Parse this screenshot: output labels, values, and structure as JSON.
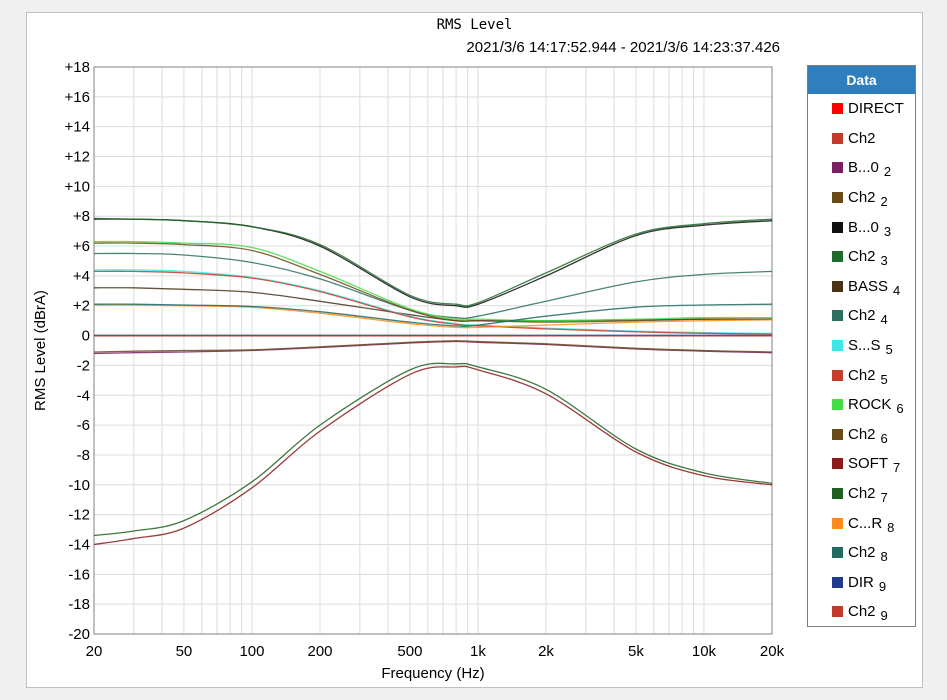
{
  "chart_data": {
    "type": "line",
    "title": "RMS Level",
    "subtitle": "2021/3/6 14:17:52.944 - 2021/3/6 14:23:37.426",
    "xlabel": "Frequency (Hz)",
    "ylabel": "RMS Level (dBrA)",
    "xscale": "log",
    "xlim": [
      20,
      20000
    ],
    "ylim": [
      -20,
      18
    ],
    "grid": true,
    "legend_position": "right",
    "legend_title": "Data",
    "x_ticks": [
      "20",
      "50",
      "100",
      "200",
      "500",
      "1k",
      "2k",
      "5k",
      "10k",
      "20k"
    ],
    "y_ticks": [
      "+18",
      "+16",
      "+14",
      "+12",
      "+10",
      "+8",
      "+6",
      "+4",
      "+2",
      "0",
      "-2",
      "-4",
      "-6",
      "-8",
      "-10",
      "-12",
      "-14",
      "-16",
      "-18",
      "-20"
    ],
    "x": [
      20,
      30,
      50,
      100,
      200,
      500,
      800,
      1000,
      2000,
      5000,
      10000,
      20000
    ],
    "series": [
      {
        "name": "DIRECT",
        "label": "DIRECT",
        "index": "",
        "color": "#ff0000",
        "values": [
          0,
          0,
          0,
          0,
          0,
          0,
          0,
          0,
          0,
          0,
          0,
          0
        ]
      },
      {
        "name": "Ch2",
        "label": "Ch2",
        "index": "",
        "color": "#c0392b",
        "values": [
          -0.02,
          -0.02,
          -0.02,
          -0.02,
          -0.02,
          -0.02,
          -0.02,
          -0.02,
          -0.02,
          -0.02,
          -0.02,
          -0.02
        ]
      },
      {
        "name": "B...0 2",
        "label": "B...0",
        "index": "2",
        "color": "#7b1f5f",
        "values": [
          -1.2,
          -1.15,
          -1.1,
          -1.0,
          -0.8,
          -0.5,
          -0.4,
          -0.45,
          -0.6,
          -0.9,
          -1.05,
          -1.15
        ]
      },
      {
        "name": "Ch2 2",
        "label": "Ch2",
        "index": "2",
        "color": "#6b4a1a",
        "values": [
          -1.1,
          -1.05,
          -1.0,
          -0.95,
          -0.75,
          -0.45,
          -0.35,
          -0.4,
          -0.55,
          -0.85,
          -1.0,
          -1.1
        ]
      },
      {
        "name": "B...0 3",
        "label": "B...0",
        "index": "3",
        "color": "#111111",
        "values": [
          7.8,
          7.8,
          7.7,
          7.3,
          6.0,
          2.6,
          2.0,
          2.1,
          4.0,
          6.7,
          7.4,
          7.7
        ]
      },
      {
        "name": "Ch2 3",
        "label": "Ch2",
        "index": "3",
        "color": "#1f6b2a",
        "values": [
          7.85,
          7.8,
          7.7,
          7.3,
          6.1,
          2.7,
          2.1,
          2.2,
          4.2,
          6.8,
          7.5,
          7.8
        ]
      },
      {
        "name": "BASS 4",
        "label": "BASS",
        "index": "4",
        "color": "#4a3418",
        "values": [
          3.2,
          3.2,
          3.1,
          2.9,
          2.3,
          1.4,
          1.0,
          1.0,
          1.0,
          1.05,
          1.1,
          1.1
        ]
      },
      {
        "name": "Ch2 4",
        "label": "Ch2",
        "index": "4",
        "color": "#2a6f5f",
        "values": [
          5.5,
          5.5,
          5.4,
          4.9,
          3.8,
          1.7,
          1.2,
          1.3,
          2.3,
          3.6,
          4.1,
          4.3
        ]
      },
      {
        "name": "S...S 5",
        "label": "S...S",
        "index": "5",
        "color": "#3ee6e6",
        "values": [
          4.4,
          4.4,
          4.3,
          3.9,
          3.0,
          1.3,
          0.8,
          0.7,
          0.5,
          0.3,
          0.2,
          0.15
        ]
      },
      {
        "name": "Ch2 5",
        "label": "Ch2",
        "index": "5",
        "color": "#c63c2c",
        "values": [
          4.3,
          4.3,
          4.2,
          3.85,
          2.95,
          1.25,
          0.75,
          0.65,
          0.45,
          0.25,
          0.15,
          0.1
        ]
      },
      {
        "name": "ROCK 6",
        "label": "ROCK",
        "index": "6",
        "color": "#44dd44",
        "values": [
          6.3,
          6.3,
          6.2,
          5.9,
          4.3,
          1.8,
          1.1,
          1.1,
          1.0,
          1.1,
          1.2,
          1.2
        ]
      },
      {
        "name": "Ch2 6",
        "label": "Ch2",
        "index": "6",
        "color": "#6b4a1a",
        "values": [
          6.2,
          6.2,
          6.1,
          5.7,
          4.1,
          1.7,
          1.0,
          1.0,
          0.9,
          1.0,
          1.1,
          1.1
        ]
      },
      {
        "name": "SOFT 7",
        "label": "SOFT",
        "index": "7",
        "color": "#8b1a1a",
        "values": [
          -14.0,
          -13.6,
          -12.9,
          -10.2,
          -6.4,
          -2.6,
          -2.1,
          -2.3,
          -3.9,
          -7.8,
          -9.4,
          -10.0
        ]
      },
      {
        "name": "Ch2 7",
        "label": "Ch2",
        "index": "7",
        "color": "#1f5f1f",
        "values": [
          -13.4,
          -13.1,
          -12.4,
          -9.8,
          -6.0,
          -2.3,
          -1.9,
          -2.1,
          -3.6,
          -7.6,
          -9.2,
          -9.9
        ]
      },
      {
        "name": "C...R 8",
        "label": "C...R",
        "index": "8",
        "color": "#ff8c1a",
        "values": [
          2.05,
          2.05,
          2.0,
          1.9,
          1.5,
          0.8,
          0.55,
          0.55,
          0.7,
          0.9,
          1.0,
          1.05
        ]
      },
      {
        "name": "Ch2 8",
        "label": "Ch2",
        "index": "8",
        "color": "#1f6b5f",
        "values": [
          2.1,
          2.1,
          2.05,
          1.95,
          1.6,
          0.9,
          0.65,
          0.7,
          1.3,
          1.9,
          2.05,
          2.1
        ]
      },
      {
        "name": "DIR 9",
        "label": "DIR",
        "index": "9",
        "color": "#1f3a8f",
        "values": [
          0.02,
          0.02,
          0.02,
          0.02,
          0.02,
          0.02,
          0.02,
          0.02,
          0.02,
          0.02,
          0.02,
          0.02
        ]
      },
      {
        "name": "Ch2 9",
        "label": "Ch2",
        "index": "9",
        "color": "#c0392b",
        "values": [
          0.0,
          0.0,
          0.0,
          0.0,
          0.0,
          0.0,
          0.0,
          0.0,
          0.0,
          0.0,
          0.0,
          0.0
        ]
      }
    ]
  }
}
